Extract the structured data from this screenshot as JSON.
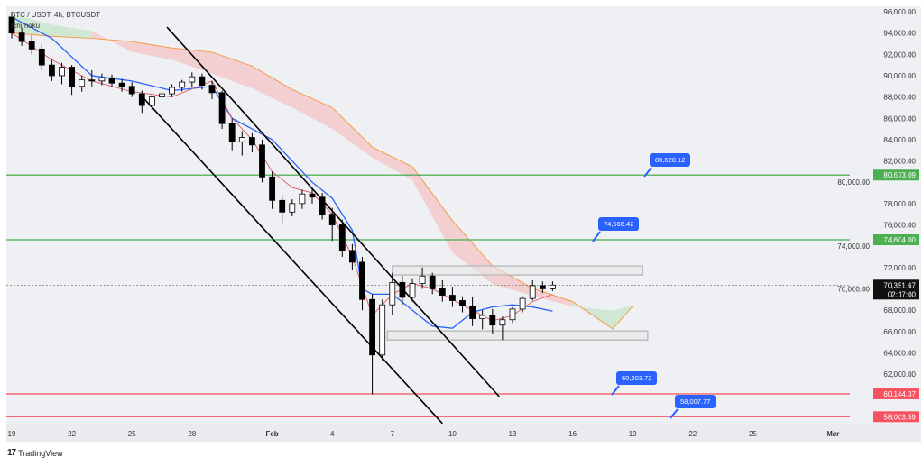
{
  "header": {
    "symbol": "BTC / USDT, 4h, BTCUSDT",
    "indicator": "Ichimoku"
  },
  "footer": {
    "brand": "TradingView",
    "brand_mark": "17"
  },
  "chart_data": {
    "type": "candlestick",
    "title": "BTC / USDT, 4h, BTCUSDT",
    "ylim": [
      58000,
      96000
    ],
    "y_ticks": [
      "62,000.00",
      "64,000.00",
      "66,000.00",
      "68,000.00",
      "70,000.00",
      "72,000.00",
      "74,000.00",
      "76,000.00",
      "78,000.00",
      "80,000.00",
      "82,000.00",
      "84,000.00",
      "86,000.00",
      "88,000.00",
      "90,000.00",
      "92,000.00",
      "94,000.00",
      "96,000.00"
    ],
    "y_tick_values": [
      62000,
      64000,
      66000,
      68000,
      70000,
      72000,
      74000,
      76000,
      78000,
      80000,
      82000,
      84000,
      86000,
      88000,
      90000,
      92000,
      94000,
      96000
    ],
    "x_ticks": [
      {
        "label": "19",
        "date": "Jan 19"
      },
      {
        "label": "22",
        "date": "Jan 22"
      },
      {
        "label": "25",
        "date": "Jan 25"
      },
      {
        "label": "28",
        "date": "Jan 28"
      },
      {
        "label": "Feb",
        "date": "Feb 1"
      },
      {
        "label": "4",
        "date": "Feb 4"
      },
      {
        "label": "7",
        "date": "Feb 7"
      },
      {
        "label": "10",
        "date": "Feb 10"
      },
      {
        "label": "13",
        "date": "Feb 13"
      },
      {
        "label": "16",
        "date": "Feb 16"
      },
      {
        "label": "19",
        "date": "Feb 19"
      },
      {
        "label": "22",
        "date": "Feb 22"
      },
      {
        "label": "25",
        "date": "Feb 25"
      },
      {
        "label": "Mar",
        "date": "Mar 1"
      }
    ],
    "candles": [
      [
        "Jan 19",
        95500,
        96000,
        93500,
        94000
      ],
      [
        "Jan 19 12:00",
        94000,
        94500,
        92800,
        93200
      ],
      [
        "Jan 20",
        93200,
        93800,
        92000,
        92500
      ],
      [
        "Jan 20 12:00",
        92500,
        93000,
        90500,
        91000
      ],
      [
        "Jan 21",
        91000,
        91500,
        89500,
        90000
      ],
      [
        "Jan 21 12:00",
        90000,
        91200,
        89200,
        90800
      ],
      [
        "Jan 22",
        90800,
        91000,
        88200,
        89000
      ],
      [
        "Jan 22 12:00",
        89000,
        90000,
        88500,
        89600
      ],
      [
        "Jan 23",
        89600,
        90500,
        89000,
        89500
      ],
      [
        "Jan 23 12:00",
        89500,
        90200,
        89100,
        89800
      ],
      [
        "Jan 24",
        89800,
        90100,
        89000,
        89300
      ],
      [
        "Jan 24 12:00",
        89300,
        89700,
        88500,
        89000
      ],
      [
        "Jan 25",
        89000,
        89400,
        88000,
        88300
      ],
      [
        "Jan 25 12:00",
        88300,
        88600,
        86500,
        87200
      ],
      [
        "Jan 26",
        87200,
        88400,
        86800,
        88000
      ],
      [
        "Jan 26 12:00",
        88000,
        88700,
        87600,
        88300
      ],
      [
        "Jan 27",
        88300,
        89200,
        88000,
        88900
      ],
      [
        "Jan 27 12:00",
        88900,
        89600,
        88500,
        89400
      ],
      [
        "Jan 28",
        89400,
        90300,
        88900,
        89900
      ],
      [
        "Jan 28 12:00",
        89900,
        90200,
        88700,
        89100
      ],
      [
        "Jan 29",
        89100,
        89500,
        87800,
        88400
      ],
      [
        "Jan 29 12:00",
        88400,
        88600,
        85000,
        85500
      ],
      [
        "Jan 30",
        85500,
        86000,
        83000,
        83800
      ],
      [
        "Jan 30 12:00",
        83800,
        84800,
        82500,
        84200
      ],
      [
        "Jan 31",
        84200,
        84600,
        82800,
        83500
      ],
      [
        "Jan 31 12:00",
        83500,
        84000,
        80000,
        80500
      ],
      [
        "Feb 1",
        80500,
        81000,
        77500,
        78300
      ],
      [
        "Feb 1 12:00",
        78300,
        78800,
        76200,
        77200
      ],
      [
        "Feb 2",
        77200,
        78400,
        76800,
        78000
      ],
      [
        "Feb 2 12:00",
        78000,
        79300,
        77500,
        78900
      ],
      [
        "Feb 3",
        78900,
        79500,
        78000,
        78600
      ],
      [
        "Feb 3 12:00",
        78600,
        79000,
        76500,
        77000
      ],
      [
        "Feb 4",
        77000,
        77600,
        74500,
        76000
      ],
      [
        "Feb 4 12:00",
        76000,
        76500,
        73000,
        73600
      ],
      [
        "Feb 5",
        73600,
        74200,
        71800,
        72500
      ],
      [
        "Feb 5 12:00",
        72500,
        73000,
        68000,
        69000
      ],
      [
        "Feb 6",
        69000,
        69500,
        60100,
        63800
      ],
      [
        "Feb 6 12:00",
        63800,
        69000,
        63300,
        68500
      ],
      [
        "Feb 7",
        68500,
        71500,
        67500,
        70600
      ],
      [
        "Feb 7 12:00",
        70600,
        71200,
        68500,
        69200
      ],
      [
        "Feb 8",
        69200,
        71000,
        68800,
        70500
      ],
      [
        "Feb 8 12:00",
        70500,
        72000,
        70000,
        71200
      ],
      [
        "Feb 9",
        71200,
        71500,
        69500,
        70000
      ],
      [
        "Feb 9 12:00",
        70000,
        70800,
        68800,
        69400
      ],
      [
        "Feb 10",
        69400,
        70200,
        68300,
        68900
      ],
      [
        "Feb 10 12:00",
        68900,
        69300,
        67800,
        68400
      ],
      [
        "Feb 11",
        68400,
        69200,
        66500,
        67200
      ],
      [
        "Feb 11 12:00",
        67200,
        68000,
        66200,
        67500
      ],
      [
        "Feb 12",
        67500,
        68100,
        65800,
        66600
      ],
      [
        "Feb 12 12:00",
        66600,
        67400,
        65200,
        67100
      ],
      [
        "Feb 13",
        67100,
        68300,
        66800,
        68100
      ],
      [
        "Feb 13 12:00",
        68100,
        69300,
        67800,
        69100
      ],
      [
        "Feb 14",
        69100,
        70800,
        68900,
        70300
      ],
      [
        "Feb 14 12:00",
        70300,
        70700,
        69600,
        70000
      ],
      [
        "Feb 15",
        70000,
        70700,
        69800,
        70352
      ]
    ],
    "ichimoku": {
      "cloud": [
        [
          "Jan 19",
          95800,
          94000
        ],
        [
          "Jan 21",
          94800,
          93700
        ],
        [
          "Jan 23",
          94200,
          93500
        ],
        [
          "Jan 25",
          92200,
          93200
        ],
        [
          "Jan 27",
          91500,
          92600
        ],
        [
          "Jan 29",
          90200,
          92200
        ],
        [
          "Jan 31",
          88800,
          90900
        ],
        [
          "Feb 2",
          87000,
          88700
        ],
        [
          "Feb 4",
          85000,
          87000
        ],
        [
          "Feb 6",
          82300,
          83300
        ],
        [
          "Feb 8",
          80200,
          81450
        ],
        [
          "Feb 10",
          73400,
          76400
        ],
        [
          "Feb 12",
          70450,
          72150
        ],
        [
          "Feb 14",
          69350,
          70050
        ],
        [
          "Feb 16",
          68350,
          68800
        ],
        [
          "Feb 18",
          67950,
          66250
        ],
        [
          "Feb 19",
          68500,
          68350
        ]
      ],
      "tenkan": [
        [
          "Jan 19",
          94000
        ],
        [
          "Jan 21",
          91500
        ],
        [
          "Jan 23",
          89500
        ],
        [
          "Jan 25",
          88500
        ],
        [
          "Jan 27",
          88000
        ],
        [
          "Jan 29",
          89500
        ],
        [
          "Jan 30",
          86000
        ],
        [
          "Jan 31",
          84000
        ],
        [
          "Feb 1",
          81000
        ],
        [
          "Feb 2",
          79500
        ],
        [
          "Feb 3",
          79000
        ],
        [
          "Feb 4",
          77000
        ],
        [
          "Feb 5",
          73000
        ],
        [
          "Feb 6",
          67500
        ],
        [
          "Feb 7",
          69500
        ],
        [
          "Feb 8",
          70500
        ],
        [
          "Feb 9",
          70000
        ],
        [
          "Feb 10",
          69000
        ],
        [
          "Feb 11",
          68000
        ],
        [
          "Feb 12",
          67000
        ],
        [
          "Feb 13",
          67500
        ],
        [
          "Feb 14",
          68800
        ],
        [
          "Feb 15",
          69500
        ]
      ],
      "kijun": [
        [
          "Jan 19",
          95500
        ],
        [
          "Jan 21",
          93500
        ],
        [
          "Jan 23",
          90000
        ],
        [
          "Jan 25",
          89500
        ],
        [
          "Jan 27",
          88600
        ],
        [
          "Jan 29",
          89000
        ],
        [
          "Jan 30",
          86000
        ],
        [
          "Feb 1",
          84000
        ],
        [
          "Feb 2",
          82000
        ],
        [
          "Feb 3",
          80000
        ],
        [
          "Feb 4",
          78500
        ],
        [
          "Feb 5",
          75500
        ],
        [
          "Feb 5 12:00",
          70000
        ],
        [
          "Feb 6",
          69500
        ],
        [
          "Feb 7",
          69500
        ],
        [
          "Feb 8",
          68000
        ],
        [
          "Feb 9",
          66500
        ],
        [
          "Feb 10",
          66300
        ],
        [
          "Feb 11",
          67800
        ],
        [
          "Feb 12",
          68300
        ],
        [
          "Feb 13",
          68500
        ],
        [
          "Feb 14",
          68300
        ],
        [
          "Feb 15",
          67900
        ]
      ]
    },
    "trendlines": [
      {
        "from": [
          "Jan 26 18:00",
          94560
        ],
        "to": [
          "Feb 12 08:00",
          59900
        ]
      },
      {
        "from": [
          "Jan 25 15:00",
          87800
        ],
        "to": [
          "Feb 9 12:00",
          57370
        ]
      }
    ],
    "zones": [
      {
        "from": "Feb 7",
        "to": "Feb 19 12:00",
        "top": 72150,
        "bottom": 71300
      },
      {
        "from": "Feb 6 18:00",
        "to": "Feb 19 18:00",
        "top": 66050,
        "bottom": 65200
      }
    ],
    "levels": [
      {
        "price": 80673.09,
        "label": "80,673.09",
        "color": "#4caf50"
      },
      {
        "price": 74604.0,
        "label": "74,604.00",
        "color": "#4caf50"
      },
      {
        "price": 60144.37,
        "label": "60,144.37",
        "color": "#f7525f"
      },
      {
        "price": 58003.59,
        "label": "58,003.59",
        "color": "#f7525f"
      }
    ],
    "callouts": [
      "80,620.12",
      "74,566.42",
      "60,203.72",
      "58,007.77"
    ],
    "last_price": {
      "price": 70351.67,
      "label": "70,351.67",
      "countdown": "02:17:00"
    },
    "colors": {
      "up": "#ffffff",
      "down": "#000000",
      "tenkan": "#e0555f",
      "kijun": "#2962ff",
      "span_b": "#f39c4a",
      "cloud_bear": "#f4c7c9",
      "cloud_bull": "#c8e6c9",
      "callout": "#2962ff",
      "background": "#eef0f3"
    }
  }
}
